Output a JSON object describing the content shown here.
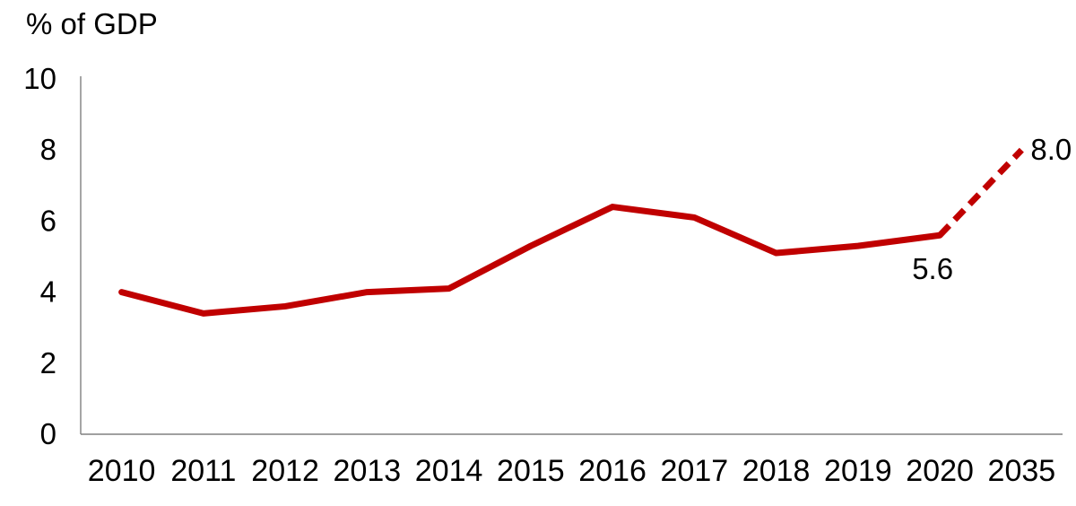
{
  "title": "% of GDP",
  "colors": {
    "line": "#c00000",
    "axis": "#808080",
    "text": "#000000",
    "background": "#ffffff"
  },
  "chart_data": {
    "type": "line",
    "title": "% of GDP",
    "x": [
      "2010",
      "2011",
      "2012",
      "2013",
      "2014",
      "2015",
      "2016",
      "2017",
      "2018",
      "2019",
      "2020",
      "2035"
    ],
    "series": [
      {
        "name": "% of GDP",
        "values": [
          4.0,
          3.4,
          3.6,
          4.0,
          4.1,
          5.3,
          6.4,
          6.1,
          5.1,
          5.3,
          5.6,
          8.0
        ],
        "dashed_from_index": 10,
        "color": "#c00000"
      }
    ],
    "ylim": [
      0,
      10
    ],
    "yticks": [
      0,
      2,
      4,
      6,
      8,
      10
    ],
    "xlabel": "",
    "ylabel": "% of GDP",
    "grid": false,
    "legend": false,
    "annotations": [
      {
        "x": "2020",
        "value": 5.6,
        "text": "5.6",
        "placement": "below-left"
      },
      {
        "x": "2035",
        "value": 8.0,
        "text": "8.0",
        "placement": "right"
      }
    ]
  }
}
